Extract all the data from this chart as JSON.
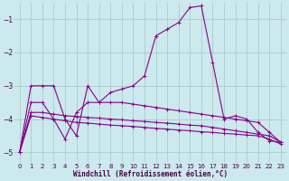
{
  "xlabel": "Windchill (Refroidissement éolien,°C)",
  "background_color": "#cce9ee",
  "grid_color": "#aacccc",
  "line_color": "#880088",
  "xlim": [
    -0.5,
    23.5
  ],
  "ylim": [
    -5.3,
    -0.5
  ],
  "yticks": [
    -5,
    -4,
    -3,
    -2,
    -1
  ],
  "xticks": [
    0,
    1,
    2,
    3,
    4,
    5,
    6,
    7,
    8,
    9,
    10,
    11,
    12,
    13,
    14,
    15,
    16,
    17,
    18,
    19,
    20,
    21,
    22,
    23
  ],
  "lines": [
    {
      "x": [
        0,
        1,
        2,
        3,
        4,
        5,
        6,
        7,
        8,
        9,
        10,
        11,
        12,
        13,
        14,
        15,
        16,
        17,
        18,
        19,
        20,
        21,
        22,
        23
      ],
      "y": [
        -5.0,
        -3.0,
        -3.0,
        -3.0,
        -4.0,
        -4.5,
        -3.0,
        -3.5,
        -3.2,
        -3.1,
        -3.0,
        -2.7,
        -1.5,
        -1.3,
        -1.1,
        -0.65,
        -0.6,
        -2.3,
        -4.0,
        -3.9,
        -4.0,
        -4.4,
        -4.65,
        -4.7
      ]
    },
    {
      "x": [
        0,
        1,
        2,
        3,
        4,
        5,
        6,
        7,
        8,
        9,
        10,
        11,
        12,
        13,
        14,
        15,
        16,
        17,
        18,
        19,
        20,
        21,
        22,
        23
      ],
      "y": [
        -5.0,
        -3.5,
        -3.5,
        -4.0,
        -4.6,
        -3.8,
        -3.5,
        -3.5,
        -3.5,
        -3.5,
        -3.55,
        -3.6,
        -3.65,
        -3.7,
        -3.75,
        -3.8,
        -3.85,
        -3.9,
        -3.95,
        -4.0,
        -4.05,
        -4.1,
        -4.4,
        -4.7
      ]
    },
    {
      "x": [
        0,
        1,
        2,
        3,
        4,
        5,
        6,
        7,
        8,
        9,
        10,
        11,
        12,
        13,
        14,
        15,
        16,
        17,
        18,
        19,
        20,
        21,
        22,
        23
      ],
      "y": [
        -5.0,
        -3.8,
        -3.8,
        -3.85,
        -3.9,
        -3.92,
        -3.95,
        -3.97,
        -4.0,
        -4.02,
        -4.05,
        -4.07,
        -4.1,
        -4.12,
        -4.15,
        -4.18,
        -4.2,
        -4.25,
        -4.3,
        -4.35,
        -4.4,
        -4.45,
        -4.5,
        -4.7
      ]
    },
    {
      "x": [
        0,
        1,
        2,
        3,
        4,
        5,
        6,
        7,
        8,
        9,
        10,
        11,
        12,
        13,
        14,
        15,
        16,
        17,
        18,
        19,
        20,
        21,
        22,
        23
      ],
      "y": [
        -5.0,
        -3.9,
        -3.95,
        -4.0,
        -4.05,
        -4.1,
        -4.12,
        -4.15,
        -4.18,
        -4.2,
        -4.22,
        -4.25,
        -4.28,
        -4.3,
        -4.33,
        -4.35,
        -4.38,
        -4.4,
        -4.43,
        -4.45,
        -4.48,
        -4.5,
        -4.6,
        -4.75
      ]
    }
  ]
}
